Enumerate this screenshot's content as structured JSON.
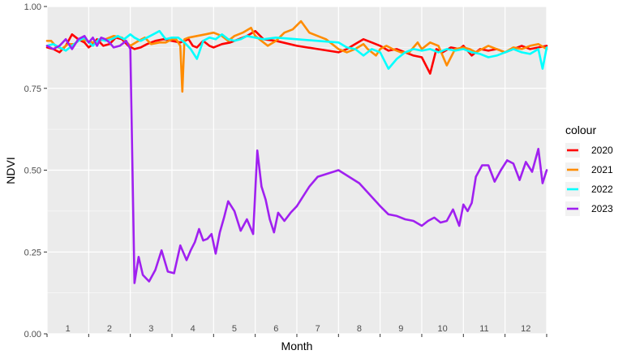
{
  "chart_data": {
    "type": "line",
    "xlabel": "Month",
    "ylabel": "NDVI",
    "xlim": [
      0,
      12
    ],
    "ylim": [
      0,
      1
    ],
    "x_ticks": [
      1,
      2,
      3,
      4,
      5,
      6,
      7,
      8,
      9,
      10,
      11,
      12
    ],
    "y_ticks": [
      "0.00",
      "0.25",
      "0.50",
      "0.75",
      "1.00"
    ],
    "y_tick_values": [
      0,
      0.25,
      0.5,
      0.75,
      1.0
    ],
    "grid": true,
    "legend": {
      "title": "colour",
      "position": "right"
    },
    "colors": {
      "panel": "#ebebeb",
      "grid": "#ffffff"
    },
    "series": [
      {
        "name": "2020",
        "color": "#ff0000",
        "x": [
          0.0,
          0.15,
          0.3,
          0.45,
          0.6,
          0.75,
          0.9,
          1.0,
          1.1,
          1.2,
          1.35,
          1.5,
          1.65,
          1.8,
          1.95,
          2.1,
          2.25,
          2.4,
          2.6,
          2.8,
          3.0,
          3.2,
          3.4,
          3.5,
          3.6,
          3.75,
          3.9,
          4.0,
          4.2,
          4.4,
          4.6,
          4.8,
          5.0,
          5.2,
          5.5,
          6.0,
          6.5,
          7.0,
          7.2,
          7.4,
          7.6,
          7.8,
          8.0,
          8.2,
          8.4,
          8.6,
          8.8,
          9.0,
          9.2,
          9.35,
          9.5,
          9.7,
          9.9,
          10.0,
          10.2,
          10.4,
          10.6,
          10.8,
          11.0,
          11.2,
          11.4,
          11.6,
          11.8,
          12.0
        ],
        "y": [
          0.875,
          0.87,
          0.86,
          0.88,
          0.915,
          0.9,
          0.89,
          0.875,
          0.885,
          0.9,
          0.88,
          0.885,
          0.905,
          0.9,
          0.88,
          0.87,
          0.875,
          0.885,
          0.895,
          0.9,
          0.895,
          0.89,
          0.9,
          0.88,
          0.875,
          0.895,
          0.88,
          0.875,
          0.885,
          0.89,
          0.9,
          0.91,
          0.925,
          0.9,
          0.895,
          0.88,
          0.87,
          0.86,
          0.87,
          0.885,
          0.9,
          0.89,
          0.88,
          0.865,
          0.87,
          0.86,
          0.85,
          0.845,
          0.795,
          0.87,
          0.86,
          0.875,
          0.87,
          0.88,
          0.85,
          0.87,
          0.865,
          0.87,
          0.86,
          0.87,
          0.88,
          0.87,
          0.875,
          0.88
        ]
      },
      {
        "name": "2021",
        "color": "#ff8c00",
        "x": [
          0.0,
          0.1,
          0.2,
          0.35,
          0.5,
          0.65,
          0.8,
          0.95,
          1.1,
          1.25,
          1.4,
          1.6,
          1.8,
          2.0,
          2.2,
          2.35,
          2.5,
          2.7,
          2.85,
          3.0,
          3.1,
          3.2,
          3.25,
          3.3,
          3.4,
          3.6,
          3.8,
          4.0,
          4.2,
          4.35,
          4.5,
          4.7,
          4.9,
          5.0,
          5.1,
          5.3,
          5.5,
          5.7,
          5.9,
          6.1,
          6.3,
          6.5,
          6.7,
          6.9,
          7.0,
          7.2,
          7.4,
          7.6,
          7.7,
          7.8,
          7.9,
          8.0,
          8.15,
          8.3,
          8.5,
          8.7,
          8.9,
          9.0,
          9.2,
          9.4,
          9.6,
          9.8,
          10.0,
          10.15,
          10.3,
          10.45,
          10.6,
          10.8,
          11.0,
          11.2,
          11.4,
          11.6,
          11.8,
          12.0
        ],
        "y": [
          0.895,
          0.895,
          0.88,
          0.87,
          0.885,
          0.885,
          0.9,
          0.895,
          0.89,
          0.895,
          0.9,
          0.91,
          0.905,
          0.88,
          0.895,
          0.905,
          0.885,
          0.89,
          0.89,
          0.9,
          0.9,
          0.88,
          0.74,
          0.9,
          0.905,
          0.91,
          0.915,
          0.92,
          0.91,
          0.895,
          0.91,
          0.92,
          0.935,
          0.91,
          0.9,
          0.88,
          0.895,
          0.92,
          0.93,
          0.955,
          0.92,
          0.91,
          0.9,
          0.88,
          0.87,
          0.86,
          0.87,
          0.885,
          0.87,
          0.86,
          0.85,
          0.87,
          0.88,
          0.87,
          0.86,
          0.86,
          0.89,
          0.87,
          0.89,
          0.88,
          0.82,
          0.87,
          0.875,
          0.87,
          0.86,
          0.87,
          0.88,
          0.87,
          0.86,
          0.875,
          0.87,
          0.88,
          0.885,
          0.87
        ]
      },
      {
        "name": "2022",
        "color": "#00ffff",
        "x": [
          0.0,
          0.15,
          0.3,
          0.45,
          0.6,
          0.75,
          0.9,
          1.0,
          1.1,
          1.25,
          1.4,
          1.55,
          1.7,
          1.85,
          2.0,
          2.1,
          2.25,
          2.4,
          2.55,
          2.7,
          2.85,
          3.0,
          3.15,
          3.3,
          3.45,
          3.6,
          3.75,
          3.9,
          4.05,
          4.2,
          4.35,
          4.5,
          4.65,
          4.8,
          5.0,
          5.2,
          5.5,
          6.0,
          6.5,
          7.0,
          7.2,
          7.4,
          7.6,
          7.8,
          8.0,
          8.2,
          8.4,
          8.6,
          8.8,
          9.0,
          9.2,
          9.4,
          9.6,
          9.8,
          10.0,
          10.2,
          10.4,
          10.6,
          10.8,
          11.0,
          11.2,
          11.4,
          11.6,
          11.8,
          11.9,
          12.0
        ],
        "y": [
          0.88,
          0.885,
          0.875,
          0.865,
          0.88,
          0.895,
          0.905,
          0.89,
          0.88,
          0.9,
          0.895,
          0.9,
          0.91,
          0.9,
          0.915,
          0.905,
          0.895,
          0.905,
          0.915,
          0.925,
          0.9,
          0.905,
          0.905,
          0.89,
          0.87,
          0.84,
          0.895,
          0.905,
          0.9,
          0.915,
          0.9,
          0.895,
          0.9,
          0.91,
          0.905,
          0.9,
          0.905,
          0.9,
          0.895,
          0.89,
          0.875,
          0.87,
          0.85,
          0.87,
          0.86,
          0.81,
          0.84,
          0.86,
          0.87,
          0.865,
          0.87,
          0.86,
          0.87,
          0.865,
          0.87,
          0.86,
          0.855,
          0.845,
          0.85,
          0.86,
          0.87,
          0.86,
          0.855,
          0.87,
          0.81,
          0.875
        ]
      },
      {
        "name": "2023",
        "color": "#a020f0",
        "x": [
          0.0,
          0.15,
          0.3,
          0.45,
          0.6,
          0.75,
          0.9,
          1.0,
          1.1,
          1.2,
          1.3,
          1.4,
          1.5,
          1.6,
          1.75,
          1.9,
          2.0,
          2.1,
          2.2,
          2.3,
          2.45,
          2.6,
          2.75,
          2.9,
          3.05,
          3.2,
          3.35,
          3.45,
          3.55,
          3.65,
          3.75,
          3.85,
          3.95,
          4.05,
          4.15,
          4.25,
          4.35,
          4.5,
          4.65,
          4.8,
          4.95,
          5.05,
          5.15,
          5.25,
          5.35,
          5.45,
          5.55,
          5.7,
          5.85,
          6.0,
          6.15,
          6.3,
          6.5,
          7.0,
          7.5,
          8.0,
          8.2,
          8.4,
          8.6,
          8.8,
          9.0,
          9.15,
          9.3,
          9.45,
          9.6,
          9.75,
          9.9,
          10.0,
          10.1,
          10.2,
          10.3,
          10.45,
          10.6,
          10.75,
          10.9,
          11.05,
          11.2,
          11.35,
          11.5,
          11.65,
          11.8,
          11.9,
          12.0
        ],
        "y": [
          0.88,
          0.87,
          0.88,
          0.9,
          0.87,
          0.9,
          0.91,
          0.89,
          0.905,
          0.88,
          0.905,
          0.9,
          0.89,
          0.875,
          0.88,
          0.895,
          0.87,
          0.155,
          0.235,
          0.18,
          0.16,
          0.195,
          0.255,
          0.19,
          0.185,
          0.27,
          0.225,
          0.255,
          0.28,
          0.32,
          0.285,
          0.29,
          0.305,
          0.245,
          0.31,
          0.355,
          0.405,
          0.375,
          0.315,
          0.35,
          0.305,
          0.56,
          0.45,
          0.41,
          0.35,
          0.31,
          0.37,
          0.345,
          0.37,
          0.39,
          0.42,
          0.45,
          0.48,
          0.5,
          0.46,
          0.39,
          0.365,
          0.36,
          0.35,
          0.345,
          0.33,
          0.345,
          0.355,
          0.34,
          0.345,
          0.38,
          0.33,
          0.395,
          0.375,
          0.4,
          0.48,
          0.515,
          0.515,
          0.465,
          0.5,
          0.53,
          0.52,
          0.47,
          0.525,
          0.495,
          0.565,
          0.46,
          0.5
        ]
      }
    ]
  }
}
